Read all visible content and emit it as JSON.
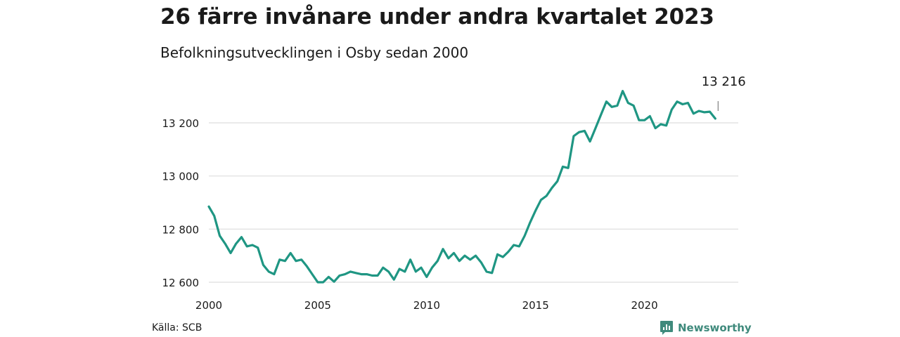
{
  "header": {
    "title": "26 färre invånare under andra kvartalet 2023",
    "subtitle": "Befolkningsutvecklingen i Osby sedan 2000"
  },
  "footer": {
    "source": "Källa: SCB",
    "brand": "Newsworthy",
    "brand_icon": "newsworthy-logo-icon"
  },
  "colors": {
    "line": "#1f9683",
    "grid": "#dddddd",
    "text": "#1a1a1a",
    "brand": "#3f8a7c"
  },
  "chart_data": {
    "type": "line",
    "title": "26 färre invånare under andra kvartalet 2023",
    "subtitle": "Befolkningsutvecklingen i Osby sedan 2000",
    "xlabel": "",
    "ylabel": "",
    "xlim": [
      2000,
      2023.5
    ],
    "ylim": [
      12600,
      13300
    ],
    "xticks": [
      2000,
      2005,
      2010,
      2015,
      2020
    ],
    "xtick_labels": [
      "2000",
      "2005",
      "2010",
      "2015",
      "2020"
    ],
    "yticks": [
      12600,
      12800,
      13000,
      13200
    ],
    "ytick_labels": [
      "12 600",
      "12 800",
      "13 000",
      "13 200"
    ],
    "grid": "horizontal",
    "end_label": "13 216",
    "series": [
      {
        "x": [
          2000.0,
          2000.25,
          2000.5,
          2000.75,
          2001.0,
          2001.25,
          2001.5,
          2001.75,
          2002.0,
          2002.25,
          2002.5,
          2002.75,
          2003.0,
          2003.25,
          2003.5,
          2003.75,
          2004.0,
          2004.25,
          2004.5,
          2004.75,
          2005.0,
          2005.25,
          2005.5,
          2005.75,
          2006.0,
          2006.25,
          2006.5,
          2006.75,
          2007.0,
          2007.25,
          2007.5,
          2007.75,
          2008.0,
          2008.25,
          2008.5,
          2008.75,
          2009.0,
          2009.25,
          2009.5,
          2009.75,
          2010.0,
          2010.25,
          2010.5,
          2010.75,
          2011.0,
          2011.25,
          2011.5,
          2011.75,
          2012.0,
          2012.25,
          2012.5,
          2012.75,
          2013.0,
          2013.25,
          2013.5,
          2013.75,
          2014.0,
          2014.25,
          2014.5,
          2014.75,
          2015.0,
          2015.25,
          2015.5,
          2015.75,
          2016.0,
          2016.25,
          2016.5,
          2016.75,
          2017.0,
          2017.25,
          2017.5,
          2017.75,
          2018.0,
          2018.25,
          2018.5,
          2018.75,
          2019.0,
          2019.25,
          2019.5,
          2019.75,
          2020.0,
          2020.25,
          2020.5,
          2020.75,
          2021.0,
          2021.25,
          2021.5,
          2021.75,
          2022.0,
          2022.25,
          2022.5,
          2022.75,
          2023.0,
          2023.25
        ],
        "values": [
          12885,
          12850,
          12775,
          12745,
          12710,
          12745,
          12770,
          12735,
          12740,
          12730,
          12665,
          12640,
          12630,
          12685,
          12680,
          12710,
          12680,
          12685,
          12660,
          12630,
          12600,
          12600,
          12620,
          12602,
          12625,
          12630,
          12640,
          12635,
          12630,
          12630,
          12625,
          12625,
          12655,
          12640,
          12610,
          12650,
          12640,
          12685,
          12640,
          12655,
          12620,
          12655,
          12680,
          12725,
          12690,
          12710,
          12680,
          12700,
          12685,
          12700,
          12675,
          12640,
          12635,
          12705,
          12695,
          12715,
          12740,
          12735,
          12775,
          12825,
          12870,
          12910,
          12925,
          12955,
          12980,
          13035,
          13030,
          13150,
          13165,
          13170,
          13130,
          13180,
          13230,
          13280,
          13260,
          13265,
          13320,
          13275,
          13265,
          13210,
          13210,
          13225,
          13180,
          13195,
          13190,
          13250,
          13280,
          13270,
          13275,
          13235,
          13245,
          13240,
          13242,
          13216
        ]
      }
    ]
  }
}
